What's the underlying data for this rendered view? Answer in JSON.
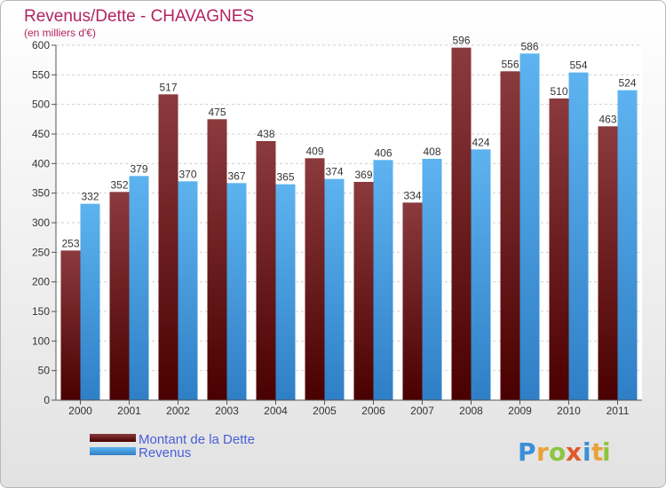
{
  "chart_data": {
    "type": "bar",
    "title": "Revenus/Dette - CHAVAGNES",
    "subtitle": "(en milliers d'€)",
    "xlabel": "",
    "ylabel": "",
    "ylim": [
      0,
      600
    ],
    "yticks": [
      0,
      50,
      100,
      150,
      200,
      250,
      300,
      350,
      400,
      450,
      500,
      550,
      600
    ],
    "grid": true,
    "legend_position": "bottom-left",
    "categories": [
      "2000",
      "2001",
      "2002",
      "2003",
      "2004",
      "2005",
      "2006",
      "2007",
      "2008",
      "2009",
      "2010",
      "2011"
    ],
    "series": [
      {
        "name": "Montant de la Dette",
        "color": "#7a1a1e",
        "values": [
          253,
          352,
          517,
          475,
          438,
          409,
          369,
          334,
          596,
          556,
          510,
          463
        ]
      },
      {
        "name": "Revenus",
        "color": "#4aa3e8",
        "values": [
          332,
          379,
          370,
          367,
          365,
          374,
          406,
          408,
          424,
          586,
          554,
          524
        ]
      }
    ]
  },
  "logo": {
    "letters": [
      "P",
      "r",
      "o",
      "x",
      "i",
      "t",
      "i"
    ],
    "colors": [
      "#3a8fd8",
      "#e8a23a",
      "#8cc63f",
      "#e05a2a",
      "#3a8fd8",
      "#e8a23a",
      "#8cc63f"
    ]
  }
}
